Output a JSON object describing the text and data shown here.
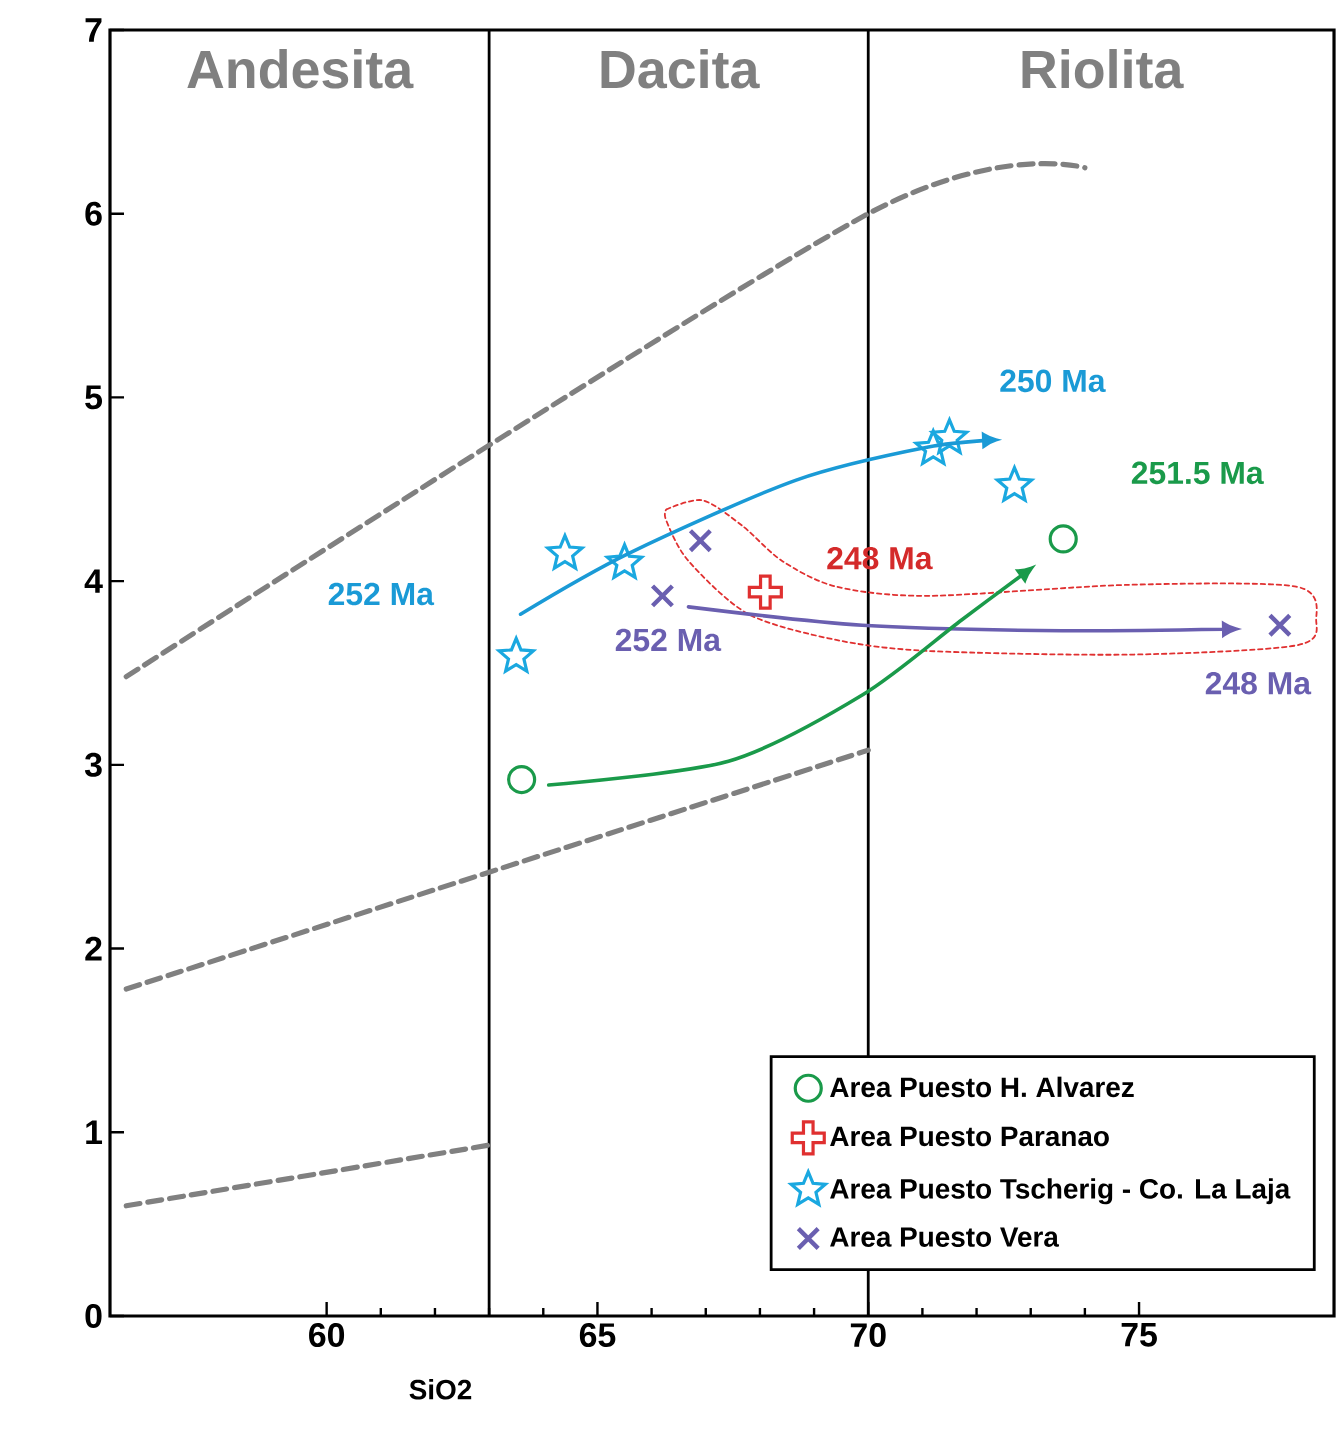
{
  "chart_data": {
    "type": "scatter",
    "xlabel": "SiO2",
    "xlim": [
      56,
      78.6
    ],
    "ylim": [
      0,
      7
    ],
    "xticks": [
      60,
      65,
      70,
      75
    ],
    "yticks": [
      0,
      1,
      2,
      3,
      4,
      5,
      6,
      7
    ],
    "grid": false,
    "legend": "bottom right",
    "ref_lines": [
      {
        "axis": "x",
        "value": 63,
        "color": "#000000"
      },
      {
        "axis": "x",
        "value": 70,
        "color": "#000000"
      }
    ],
    "series": [
      {
        "type": "line",
        "color": "#808080",
        "line_style": "dashed",
        "x": [
          56.3,
          70,
          74
        ],
        "values": [
          3.48,
          6.0,
          6.25
        ]
      },
      {
        "type": "line",
        "color": "#808080",
        "line_style": "dashed",
        "x": [
          56.3,
          70
        ],
        "values": [
          1.78,
          3.08
        ]
      },
      {
        "type": "line",
        "color": "#808080",
        "line_style": "dashed",
        "x": [
          56.3,
          63
        ],
        "values": [
          0.6,
          0.93
        ]
      },
      {
        "name": "Area Puesto H. Alvarez",
        "color": "#1a9a4a",
        "marker": "circle",
        "x": [
          63.6,
          73.6
        ],
        "values": [
          2.92,
          4.23
        ]
      },
      {
        "name": "Area Puesto Paranao",
        "color": "#e03030",
        "marker": "plus",
        "x": [
          68.1
        ],
        "values": [
          3.94
        ]
      },
      {
        "name": "Area Puesto Tscherig - Co. La Laja",
        "color": "#1aa8e0",
        "marker": "star",
        "x": [
          63.5,
          64.4,
          65.5,
          71.2,
          71.5,
          72.7
        ],
        "values": [
          3.59,
          4.15,
          4.1,
          4.72,
          4.78,
          4.52
        ]
      },
      {
        "name": "Area Puesto Vera",
        "color": "#6a5fb0",
        "marker": "cross",
        "x": [
          66.2,
          66.9,
          77.6
        ],
        "values": [
          3.92,
          4.22,
          3.76
        ]
      }
    ],
    "annotations": [
      "Andesita",
      "Dacita",
      "Riolita",
      "252 Ma",
      "250 Ma",
      {
        "text": "251.5 Ma",
        "x": 73.6,
        "y": 4.23
      },
      {
        "text": "248 Ma",
        "x": 68.1,
        "y": 3.94
      },
      "252 Ma",
      {
        "text": "248 Ma",
        "x": 77.6,
        "y": 3.76
      }
    ]
  }
}
